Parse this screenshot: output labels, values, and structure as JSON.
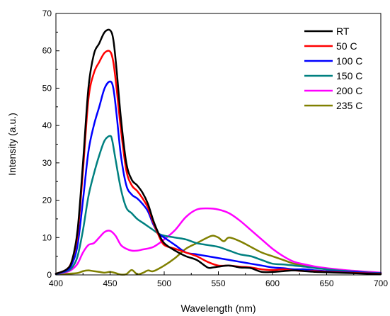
{
  "chart_data": {
    "type": "line",
    "title": "",
    "xlabel": "Wavelength (nm)",
    "ylabel": "Intensity (a.u.)",
    "xlim": [
      400,
      700
    ],
    "ylim": [
      0,
      70
    ],
    "xticks": [
      400,
      450,
      500,
      550,
      600,
      650,
      700
    ],
    "yticks": [
      0,
      10,
      20,
      30,
      40,
      50,
      60,
      70
    ],
    "grid": false,
    "legend_position": "top-right",
    "series": [
      {
        "name": "RT",
        "color": "#000000",
        "x": [
          400,
          410,
          415,
          420,
          425,
          430,
          435,
          440,
          445,
          450,
          453,
          456,
          460,
          465,
          470,
          475,
          480,
          485,
          490,
          495,
          500,
          510,
          520,
          530,
          540,
          545,
          550,
          560,
          570,
          580,
          590,
          600,
          610,
          620,
          630,
          640,
          650,
          660,
          670,
          680,
          690,
          700
        ],
        "y": [
          0.3,
          1.5,
          4,
          12,
          30,
          50,
          59,
          62,
          65,
          65.5,
          63,
          55,
          42,
          30,
          25.5,
          24,
          22,
          19,
          14.5,
          11,
          8.5,
          6.5,
          5,
          4,
          2,
          2,
          2.2,
          2.5,
          2,
          1.8,
          0.8,
          0.8,
          1,
          1.2,
          1,
          0.8,
          0.7,
          0.6,
          0.5,
          0.4,
          0.3,
          0.2
        ]
      },
      {
        "name": "50 C",
        "color": "#ff0000",
        "x": [
          400,
          410,
          415,
          420,
          425,
          430,
          435,
          440,
          445,
          450,
          453,
          456,
          460,
          465,
          470,
          475,
          480,
          485,
          490,
          495,
          500,
          510,
          520,
          530,
          540,
          550,
          560,
          570,
          580,
          590,
          600,
          610,
          620,
          630,
          640,
          650,
          660,
          670,
          680,
          690,
          700
        ],
        "y": [
          0.3,
          1.5,
          4,
          11,
          28,
          47,
          54,
          57,
          59.5,
          59.8,
          57,
          50,
          39,
          28,
          24,
          22.5,
          20.5,
          18,
          14,
          10.5,
          8,
          7,
          6,
          5,
          3.5,
          2.5,
          2.5,
          2.2,
          2,
          1.5,
          1.3,
          1.5,
          1.2,
          1,
          1,
          0.8,
          0.7,
          0.6,
          0.5,
          0.4,
          0.3
        ]
      },
      {
        "name": "100 C",
        "color": "#0000ff",
        "x": [
          400,
          410,
          415,
          420,
          425,
          430,
          435,
          440,
          445,
          450,
          453,
          456,
          460,
          465,
          470,
          475,
          480,
          485,
          490,
          495,
          500,
          510,
          520,
          530,
          540,
          550,
          560,
          570,
          580,
          590,
          600,
          610,
          620,
          630,
          640,
          650,
          660,
          670,
          680,
          690,
          700
        ],
        "y": [
          0.3,
          1.2,
          3,
          8,
          20,
          33,
          40,
          45,
          50,
          51.8,
          50,
          43,
          32,
          24,
          21.5,
          20.5,
          19,
          17,
          13.5,
          11,
          10,
          8,
          6,
          5.5,
          5,
          4.5,
          4,
          3.5,
          3,
          2.5,
          2,
          1.8,
          1.5,
          1.5,
          1.2,
          1,
          0.9,
          0.8,
          0.7,
          0.5,
          0.4
        ]
      },
      {
        "name": "150 C",
        "color": "#008080",
        "x": [
          400,
          410,
          415,
          420,
          425,
          430,
          435,
          440,
          445,
          450,
          452,
          455,
          460,
          465,
          470,
          475,
          480,
          485,
          490,
          495,
          500,
          510,
          520,
          530,
          540,
          550,
          560,
          570,
          580,
          590,
          600,
          610,
          620,
          630,
          640,
          650,
          660,
          670,
          680,
          690,
          700
        ],
        "y": [
          0.2,
          1,
          2,
          5,
          12,
          21,
          27,
          32,
          36,
          37.2,
          36,
          31,
          23,
          18,
          16.5,
          15,
          14,
          13,
          12,
          11,
          10.5,
          10,
          9.5,
          8.5,
          8,
          7.5,
          6.5,
          5.5,
          5,
          4,
          3,
          2.8,
          2.5,
          2.2,
          1.8,
          1.5,
          1.2,
          1,
          0.8,
          0.6,
          0.5
        ]
      },
      {
        "name": "200 C",
        "color": "#ff00ff",
        "x": [
          400,
          410,
          415,
          420,
          425,
          430,
          435,
          440,
          445,
          450,
          455,
          460,
          465,
          470,
          475,
          480,
          490,
          500,
          510,
          520,
          530,
          540,
          550,
          560,
          570,
          580,
          590,
          600,
          610,
          620,
          630,
          640,
          650,
          660,
          670,
          680,
          690,
          700
        ],
        "y": [
          0.2,
          0.8,
          1.5,
          3,
          6,
          8,
          8.5,
          10,
          11.5,
          11.8,
          10.5,
          8,
          7,
          6.5,
          6.5,
          6.8,
          7.5,
          9.5,
          12,
          15.5,
          17.5,
          17.8,
          17.5,
          16.5,
          14.5,
          12,
          9.5,
          7,
          5,
          3.5,
          2.8,
          2.2,
          1.8,
          1.5,
          1.2,
          1,
          0.8,
          0.6
        ]
      },
      {
        "name": "235 C",
        "color": "#808000",
        "x": [
          400,
          410,
          420,
          425,
          430,
          435,
          440,
          445,
          450,
          455,
          460,
          465,
          470,
          475,
          480,
          485,
          490,
          500,
          510,
          520,
          530,
          540,
          545,
          550,
          555,
          560,
          570,
          580,
          590,
          600,
          610,
          620,
          630,
          640,
          650,
          660,
          670,
          680,
          690,
          700
        ],
        "y": [
          0.2,
          0.3,
          0.5,
          1,
          1.2,
          1,
          0.8,
          0.6,
          0.8,
          0.5,
          0.1,
          0.2,
          1.3,
          0.2,
          0.5,
          1.2,
          1,
          2.5,
          4.5,
          7,
          8.5,
          10,
          10.5,
          10,
          9,
          10,
          9,
          7.5,
          6,
          5,
          4,
          3,
          2.5,
          2,
          1.5,
          1,
          0.8,
          0.6,
          0.4,
          0.3
        ]
      }
    ]
  }
}
